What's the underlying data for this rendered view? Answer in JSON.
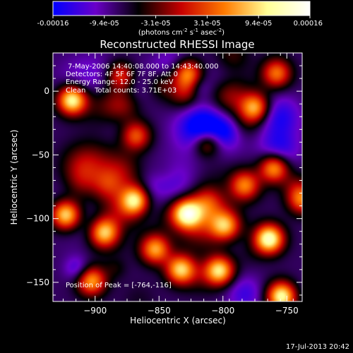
{
  "chart_data": {
    "type": "heatmap",
    "title": "Reconstructed RHESSI Image",
    "xlabel": "Heliocentric X (arcsec)",
    "ylabel": "Heliocentric Y (arcsec)",
    "xlim": [
      -933,
      -738
    ],
    "ylim": [
      -165,
      30
    ],
    "x_ticks": [
      -900,
      -850,
      -800,
      -750
    ],
    "y_ticks": [
      0,
      -50,
      -100,
      -150
    ],
    "colorbar": {
      "ticks": [
        "-0.00016",
        "-9.4e-05",
        "-3.1e-05",
        "3.1e-05",
        "9.4e-05",
        "0.00016"
      ],
      "units_base": "(photons cm",
      "units_sup1": "-2",
      "units_mid1": " s",
      "units_sup2": "-1",
      "units_mid2": " asec",
      "units_sup3": "-2",
      "units_end": ")",
      "colors": [
        "#0000ff",
        "#6a00c8",
        "#000000",
        "#c80000",
        "#ff7a00",
        "#ffff96",
        "#ffffff"
      ]
    },
    "annotations": {
      "time_range": "7-May-2006 14:40:08.000 to 14:43:40.000",
      "detectors": "Detectors: 4F 5F 6F 7F 8F, Att 0",
      "energy_range": "Energy Range: 12.0 - 25.0 keV",
      "method_counts": "Clean    Total counts: 3.71E+03",
      "peak_position": "Position of Peak = [-764,-116]"
    },
    "peak": [
      -764,
      -116
    ],
    "total_counts": 3710,
    "bright_sources": [
      {
        "x": -764,
        "y": -116,
        "level": 1.0
      },
      {
        "x": -828,
        "y": -96,
        "level": 0.9
      },
      {
        "x": -868,
        "y": -86,
        "level": 0.88
      },
      {
        "x": -918,
        "y": -7,
        "level": 0.95
      },
      {
        "x": -754,
        "y": -161,
        "level": 0.95
      },
      {
        "x": -923,
        "y": -97,
        "level": 0.85
      },
      {
        "x": -893,
        "y": -111,
        "level": 0.75
      },
      {
        "x": -803,
        "y": -141,
        "level": 0.8
      },
      {
        "x": -833,
        "y": -140,
        "level": 0.8
      },
      {
        "x": -903,
        "y": -149,
        "level": 0.7
      },
      {
        "x": -760,
        "y": -60,
        "level": 0.75
      },
      {
        "x": -828,
        "y": 14,
        "level": 0.7
      },
      {
        "x": -775,
        "y": -13,
        "level": 0.7
      },
      {
        "x": -868,
        "y": -35,
        "level": 0.55
      },
      {
        "x": -783,
        "y": -74,
        "level": 0.6
      },
      {
        "x": -738,
        "y": -85,
        "level": 0.6
      },
      {
        "x": -853,
        "y": -124,
        "level": 0.7
      },
      {
        "x": -798,
        "y": -106,
        "level": 0.65
      },
      {
        "x": -758,
        "y": 14,
        "level": 0.6
      },
      {
        "x": -880,
        "y": 12,
        "level": 0.55
      },
      {
        "x": -812,
        "y": -40,
        "level": 0.55
      }
    ]
  },
  "footer": {
    "timestamp": "17-Jul-2013 20:42"
  }
}
